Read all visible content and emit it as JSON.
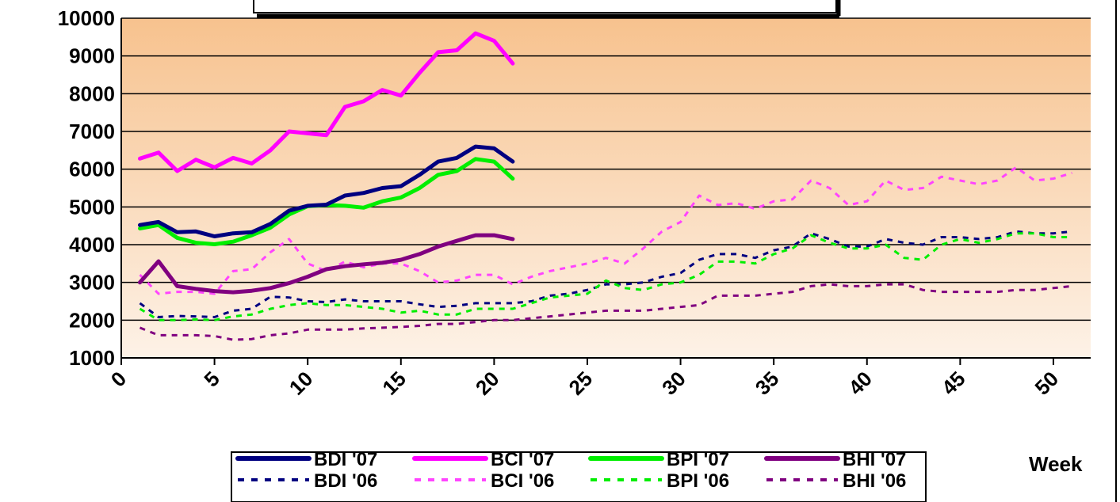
{
  "chart_data": {
    "type": "line",
    "title": "",
    "xlabel": "Week",
    "ylabel": "",
    "xlim": [
      0,
      52
    ],
    "ylim": [
      1000,
      10000
    ],
    "x_ticks": [
      0,
      5,
      10,
      15,
      20,
      25,
      30,
      35,
      40,
      45,
      50
    ],
    "y_ticks": [
      1000,
      2000,
      3000,
      4000,
      5000,
      6000,
      7000,
      8000,
      9000,
      10000
    ],
    "grid": "horizontal",
    "legend_position": "bottom",
    "series": [
      {
        "name": "BDI '07",
        "color": "#000080",
        "dash": "solid",
        "x": [
          1,
          2,
          3,
          4,
          5,
          6,
          7,
          8,
          9,
          10,
          11,
          12,
          13,
          14,
          15,
          16,
          17,
          18,
          19,
          20,
          21
        ],
        "values": [
          4520,
          4600,
          4330,
          4350,
          4220,
          4300,
          4330,
          4550,
          4900,
          5030,
          5060,
          5300,
          5370,
          5500,
          5550,
          5850,
          6200,
          6300,
          6600,
          6550,
          6200
        ]
      },
      {
        "name": "BCI '07",
        "color": "#ff00ff",
        "dash": "solid",
        "x": [
          1,
          2,
          3,
          4,
          5,
          6,
          7,
          8,
          9,
          10,
          11,
          12,
          13,
          14,
          15,
          16,
          17,
          18,
          19,
          20,
          21
        ],
        "values": [
          6280,
          6440,
          5950,
          6250,
          6050,
          6300,
          6150,
          6500,
          7000,
          6950,
          6900,
          7650,
          7800,
          8100,
          7950,
          8550,
          9100,
          9150,
          9600,
          9400,
          8800
        ]
      },
      {
        "name": "BPI '07",
        "color": "#00ee00",
        "dash": "solid",
        "x": [
          1,
          2,
          3,
          4,
          5,
          6,
          7,
          8,
          9,
          10,
          11,
          12,
          13,
          14,
          15,
          16,
          17,
          18,
          19,
          20,
          21
        ],
        "values": [
          4430,
          4520,
          4180,
          4050,
          4010,
          4080,
          4250,
          4450,
          4800,
          5020,
          5050,
          5030,
          4980,
          5150,
          5250,
          5500,
          5850,
          5950,
          6270,
          6200,
          5750
        ]
      },
      {
        "name": "BHI '07",
        "color": "#800080",
        "dash": "solid",
        "x": [
          1,
          2,
          3,
          4,
          5,
          6,
          7,
          8,
          9,
          10,
          11,
          12,
          13,
          14,
          15,
          16,
          17,
          18,
          19,
          20,
          21
        ],
        "values": [
          3000,
          3560,
          2900,
          2830,
          2770,
          2740,
          2780,
          2850,
          2980,
          3150,
          3350,
          3430,
          3480,
          3520,
          3600,
          3750,
          3950,
          4100,
          4250,
          4250,
          4150
        ]
      },
      {
        "name": "BDI '06",
        "color": "#000080",
        "dash": "dashed",
        "x": [
          1,
          2,
          3,
          4,
          5,
          6,
          7,
          8,
          9,
          10,
          11,
          12,
          13,
          14,
          15,
          16,
          17,
          18,
          19,
          20,
          21,
          22,
          23,
          24,
          25,
          26,
          27,
          28,
          29,
          30,
          31,
          32,
          33,
          34,
          35,
          36,
          37,
          38,
          39,
          40,
          41,
          42,
          43,
          44,
          45,
          46,
          47,
          48,
          49,
          50,
          51
        ],
        "values": [
          2450,
          2080,
          2110,
          2100,
          2080,
          2250,
          2300,
          2620,
          2600,
          2500,
          2480,
          2550,
          2500,
          2500,
          2500,
          2420,
          2350,
          2380,
          2450,
          2450,
          2450,
          2500,
          2650,
          2700,
          2800,
          2950,
          2950,
          3000,
          3150,
          3250,
          3600,
          3750,
          3750,
          3650,
          3850,
          3950,
          4300,
          4150,
          3950,
          3950,
          4150,
          4050,
          4000,
          4200,
          4200,
          4150,
          4200,
          4350,
          4300,
          4300,
          4350
        ]
      },
      {
        "name": "BCI '06",
        "color": "#ff44ff",
        "dash": "dashed",
        "x": [
          1,
          2,
          3,
          4,
          5,
          6,
          7,
          8,
          9,
          10,
          11,
          12,
          13,
          14,
          15,
          16,
          17,
          18,
          19,
          20,
          21,
          22,
          23,
          24,
          25,
          26,
          27,
          28,
          29,
          30,
          31,
          32,
          33,
          34,
          35,
          36,
          37,
          38,
          39,
          40,
          41,
          42,
          43,
          44,
          45,
          46,
          47,
          48,
          49,
          50,
          51
        ],
        "values": [
          3200,
          2700,
          2750,
          2750,
          2700,
          3300,
          3350,
          3800,
          4150,
          3500,
          3300,
          3550,
          3400,
          3500,
          3500,
          3300,
          3000,
          3050,
          3200,
          3200,
          2950,
          3150,
          3300,
          3400,
          3500,
          3650,
          3500,
          3900,
          4350,
          4600,
          5300,
          5050,
          5100,
          4950,
          5150,
          5200,
          5700,
          5500,
          5050,
          5150,
          5700,
          5450,
          5500,
          5800,
          5700,
          5600,
          5700,
          6050,
          5700,
          5750,
          5900
        ]
      },
      {
        "name": "BPI '06",
        "color": "#00ee00",
        "dash": "dashed",
        "x": [
          1,
          2,
          3,
          4,
          5,
          6,
          7,
          8,
          9,
          10,
          11,
          12,
          13,
          14,
          15,
          16,
          17,
          18,
          19,
          20,
          21,
          22,
          23,
          24,
          25,
          26,
          27,
          28,
          29,
          30,
          31,
          32,
          33,
          34,
          35,
          36,
          37,
          38,
          39,
          40,
          41,
          42,
          43,
          44,
          45,
          46,
          47,
          48,
          49,
          50,
          51
        ],
        "values": [
          2300,
          2000,
          2000,
          2020,
          2000,
          2100,
          2150,
          2300,
          2400,
          2450,
          2400,
          2400,
          2350,
          2300,
          2200,
          2250,
          2150,
          2150,
          2300,
          2300,
          2300,
          2450,
          2600,
          2650,
          2700,
          3050,
          2850,
          2800,
          2950,
          3000,
          3200,
          3550,
          3550,
          3500,
          3750,
          3900,
          4250,
          4050,
          3900,
          3900,
          4000,
          3650,
          3600,
          4000,
          4150,
          4050,
          4150,
          4300,
          4300,
          4200,
          4200
        ]
      },
      {
        "name": "BHI '06",
        "color": "#800080",
        "dash": "dashed",
        "x": [
          1,
          2,
          3,
          4,
          5,
          6,
          7,
          8,
          9,
          10,
          11,
          12,
          13,
          14,
          15,
          16,
          17,
          18,
          19,
          20,
          21,
          22,
          23,
          24,
          25,
          26,
          27,
          28,
          29,
          30,
          31,
          32,
          33,
          34,
          35,
          36,
          37,
          38,
          39,
          40,
          41,
          42,
          43,
          44,
          45,
          46,
          47,
          48,
          49,
          50,
          51
        ],
        "values": [
          1800,
          1600,
          1600,
          1600,
          1580,
          1480,
          1500,
          1600,
          1650,
          1750,
          1750,
          1750,
          1780,
          1800,
          1820,
          1850,
          1900,
          1900,
          1950,
          2000,
          2000,
          2050,
          2100,
          2150,
          2200,
          2250,
          2250,
          2250,
          2300,
          2350,
          2400,
          2650,
          2650,
          2650,
          2700,
          2750,
          2900,
          2950,
          2900,
          2900,
          2950,
          2950,
          2800,
          2750,
          2750,
          2750,
          2750,
          2800,
          2800,
          2850,
          2900
        ]
      }
    ]
  }
}
